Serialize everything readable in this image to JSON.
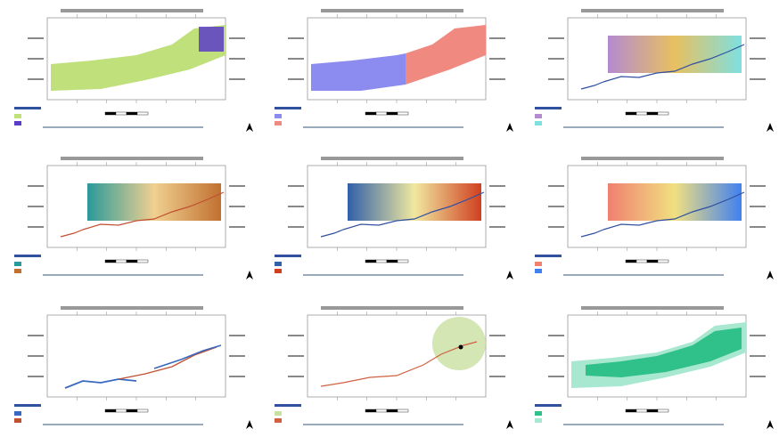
{
  "panels": [
    {
      "colors": [
        "#bfe07a",
        "#5a3cc8"
      ]
    },
    {
      "colors": [
        "#8c8cf0",
        "#f08a80"
      ]
    },
    {
      "colors": [
        "#b48ad0",
        "#e8c060",
        "#7ee0e0"
      ]
    },
    {
      "colors": [
        "#2a9a9a",
        "#f0d090",
        "#c07030"
      ]
    },
    {
      "colors": [
        "#3060a8",
        "#f0e8a0",
        "#d04020"
      ]
    },
    {
      "colors": [
        "#f08070",
        "#f0e080",
        "#4080f0"
      ]
    },
    {
      "colors": [
        "#3868c0",
        "#c05030"
      ]
    },
    {
      "colors": [
        "#c8e0a0",
        "#d06040"
      ]
    },
    {
      "colors": [
        "#30c08a",
        "#a8e8d0"
      ]
    }
  ]
}
